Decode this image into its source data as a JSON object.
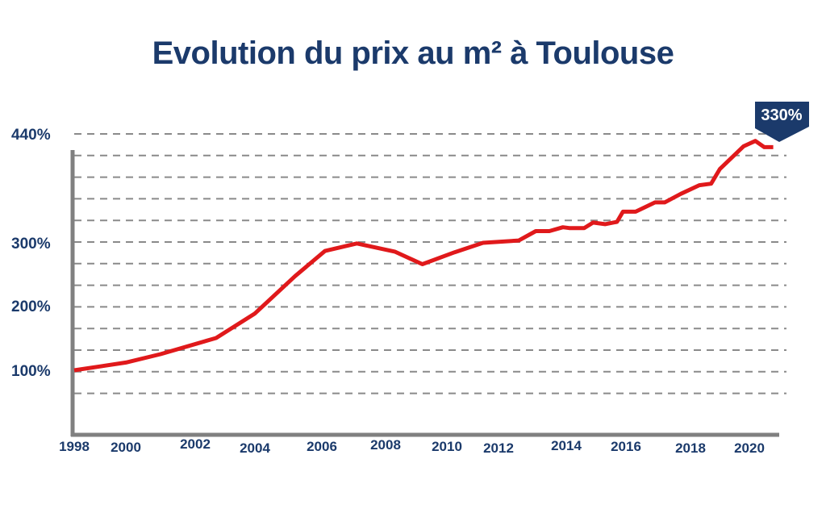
{
  "chart_data": {
    "type": "line",
    "title": "Evolution du prix au m² à Toulouse",
    "xlabel": "",
    "ylabel": "",
    "x_ticks": [
      "1998",
      "2000",
      "2002",
      "2004",
      "2006",
      "2008",
      "2010",
      "2012",
      "2014",
      "2016",
      "2018",
      "2020"
    ],
    "y_ticks": [
      "100%",
      "200%",
      "300%",
      "440%"
    ],
    "grid": true,
    "annotation": "330%",
    "colors": {
      "line": "#e0191b",
      "text": "#1b3a6b",
      "grid": "#8a8a8a",
      "axis": "#808080",
      "badge": "#1b3a6b"
    },
    "series": [
      {
        "x": [
          1998,
          2000,
          2001,
          2002.7,
          2004,
          2005.2,
          2006.1,
          2007.1,
          2008.3,
          2009.2,
          2010.3,
          2011.4,
          2012.6,
          2013.1,
          2013.5,
          2013.9,
          2014.1,
          2014.6,
          2014.9,
          2015.3,
          2015.7,
          2015.9,
          2016.3,
          2016.9,
          2017.2,
          2017.7,
          2018.3,
          2018.7,
          2019.0,
          2019.8,
          2020.2,
          2020.5,
          2020.8
        ],
        "y": [
          100,
          112,
          125,
          150,
          188,
          247,
          287,
          299,
          286,
          266,
          285,
          300,
          303,
          315,
          315,
          320,
          319,
          319,
          326,
          324,
          327,
          340,
          340,
          352,
          352,
          363,
          374,
          376,
          395,
          424,
          431,
          423,
          423
        ]
      }
    ]
  }
}
